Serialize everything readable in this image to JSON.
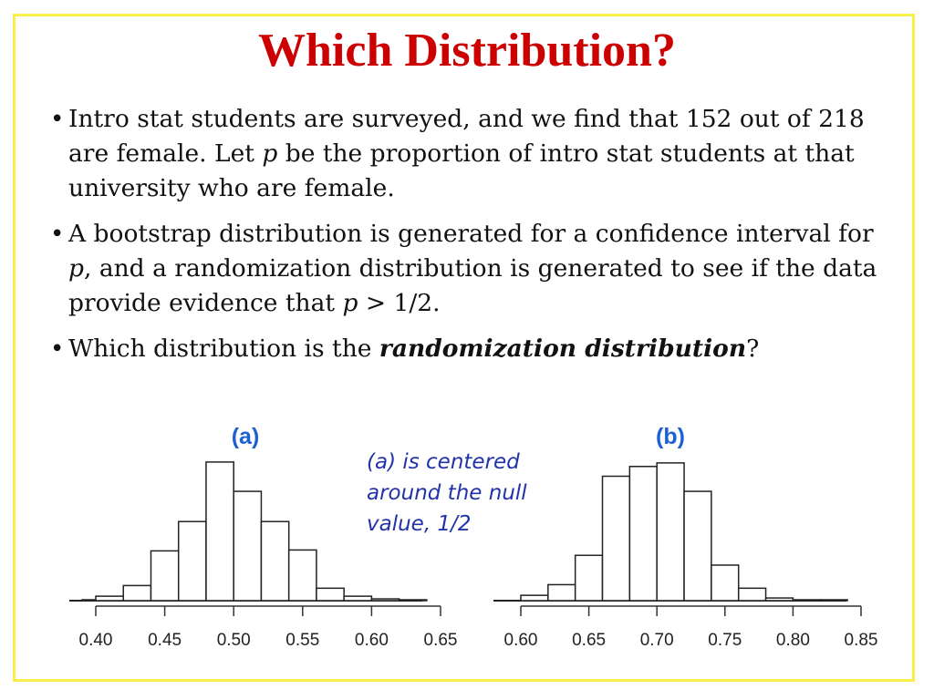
{
  "slide": {
    "title": "Which Distribution?",
    "bullets": [
      {
        "parts": [
          {
            "text": " Intro stat students are surveyed, and we find that 152 out of 218 are female.  Let ",
            "style": "normal"
          },
          {
            "text": "p",
            "style": "italic"
          },
          {
            "text": " be the proportion of intro stat students at that university who are female.",
            "style": "normal"
          }
        ]
      },
      {
        "parts": [
          {
            "text": "A bootstrap distribution is generated for a confidence interval for ",
            "style": "normal"
          },
          {
            "text": "p",
            "style": "italic"
          },
          {
            "text": ", and a randomization distribution is generated to see if the data provide evidence that ",
            "style": "normal"
          },
          {
            "text": "p",
            "style": "italic"
          },
          {
            "text": " > 1/2.",
            "style": "normal"
          }
        ]
      },
      {
        "parts": [
          {
            "text": "Which distribution is the ",
            "style": "normal"
          },
          {
            "text": "randomization distribution",
            "style": "bolditalic"
          },
          {
            "text": "?",
            "style": "normal"
          }
        ]
      }
    ],
    "bullet_symbol": "•",
    "annotation": "(a) is centered\naround the null\nvalue, 1/2",
    "colors": {
      "title": "#cc0000",
      "frame": "#f7f04a",
      "chart_title": "#1f5fd6",
      "annotation": "#2233aa"
    }
  },
  "chart_data": [
    {
      "type": "bar",
      "title": "(a)",
      "xlabel": "",
      "ylabel": "",
      "xlim": [
        0.38,
        0.65
      ],
      "x_ticks": [
        "0.40",
        "0.45",
        "0.50",
        "0.55",
        "0.60",
        "0.65"
      ],
      "bins": [
        {
          "x0": 0.39,
          "x1": 0.4,
          "count": 1
        },
        {
          "x0": 0.4,
          "x1": 0.42,
          "count": 5
        },
        {
          "x0": 0.42,
          "x1": 0.44,
          "count": 17
        },
        {
          "x0": 0.44,
          "x1": 0.46,
          "count": 56
        },
        {
          "x0": 0.46,
          "x1": 0.48,
          "count": 89
        },
        {
          "x0": 0.48,
          "x1": 0.5,
          "count": 156
        },
        {
          "x0": 0.5,
          "x1": 0.52,
          "count": 123
        },
        {
          "x0": 0.52,
          "x1": 0.54,
          "count": 89
        },
        {
          "x0": 0.54,
          "x1": 0.56,
          "count": 57
        },
        {
          "x0": 0.56,
          "x1": 0.58,
          "count": 14
        },
        {
          "x0": 0.58,
          "x1": 0.6,
          "count": 5
        },
        {
          "x0": 0.6,
          "x1": 0.62,
          "count": 2
        },
        {
          "x0": 0.62,
          "x1": 0.64,
          "count": 1
        }
      ],
      "ymax": 160,
      "grid": false
    },
    {
      "type": "bar",
      "title": "(b)",
      "xlabel": "",
      "ylabel": "",
      "xlim": [
        0.59,
        0.85
      ],
      "x_ticks": [
        "0.60",
        "0.65",
        "0.70",
        "0.75",
        "0.80",
        "0.85"
      ],
      "bins": [
        {
          "x0": 0.6,
          "x1": 0.62,
          "count": 6
        },
        {
          "x0": 0.62,
          "x1": 0.64,
          "count": 18
        },
        {
          "x0": 0.64,
          "x1": 0.66,
          "count": 51
        },
        {
          "x0": 0.66,
          "x1": 0.68,
          "count": 140
        },
        {
          "x0": 0.68,
          "x1": 0.7,
          "count": 151
        },
        {
          "x0": 0.7,
          "x1": 0.72,
          "count": 155
        },
        {
          "x0": 0.72,
          "x1": 0.74,
          "count": 123
        },
        {
          "x0": 0.74,
          "x1": 0.76,
          "count": 40
        },
        {
          "x0": 0.76,
          "x1": 0.78,
          "count": 14
        },
        {
          "x0": 0.78,
          "x1": 0.8,
          "count": 3
        },
        {
          "x0": 0.8,
          "x1": 0.82,
          "count": 1
        },
        {
          "x0": 0.82,
          "x1": 0.84,
          "count": 1
        }
      ],
      "ymax": 160,
      "grid": false
    }
  ]
}
